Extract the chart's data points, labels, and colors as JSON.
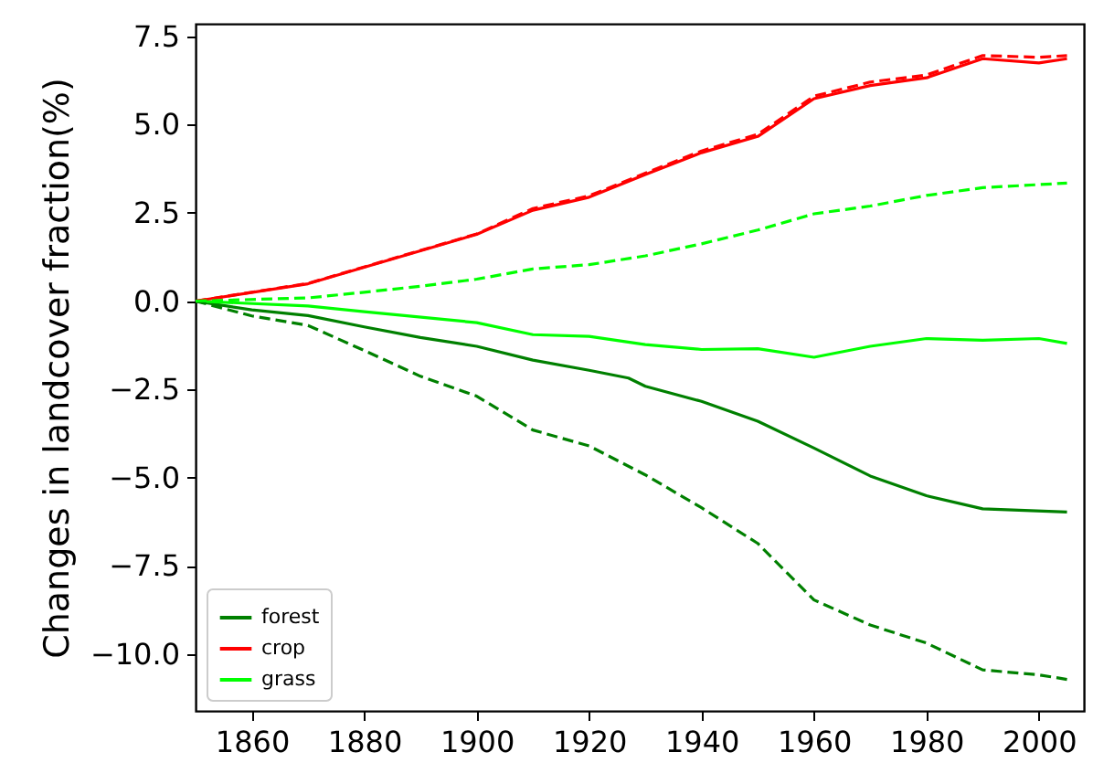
{
  "chart_data": {
    "type": "line",
    "ylabel": "Changes in landcover fraction(%)",
    "xlim": [
      1850,
      2008
    ],
    "ylim": [
      -11.6,
      7.85
    ],
    "xticks": [
      1860,
      1880,
      1900,
      1920,
      1940,
      1960,
      1980,
      2000
    ],
    "yticks": [
      {
        "value": -10,
        "label": "−10.0"
      },
      {
        "value": -7.5,
        "label": "−7.5"
      },
      {
        "value": -5,
        "label": "−5.0"
      },
      {
        "value": -2.5,
        "label": "−2.5"
      },
      {
        "value": 0,
        "label": "0.0"
      },
      {
        "value": 2.5,
        "label": "2.5"
      },
      {
        "value": 5,
        "label": "5.0"
      },
      {
        "value": 7.5,
        "label": "7.5"
      }
    ],
    "legend": "bottom left",
    "series": [
      {
        "name": "forest",
        "color": "#008000",
        "line_style": "solid",
        "x": [
          1850,
          1860,
          1870,
          1880,
          1890,
          1900,
          1910,
          1920,
          1927,
          1930,
          1940,
          1950,
          1960,
          1970,
          1980,
          1990,
          2005
        ],
        "values": [
          0,
          -0.25,
          -0.41,
          -0.73,
          -1.03,
          -1.28,
          -1.67,
          -1.96,
          -2.18,
          -2.41,
          -2.84,
          -3.4,
          -4.16,
          -4.95,
          -5.51,
          -5.88,
          -5.97
        ]
      },
      {
        "name": "crop",
        "color": "#ff0000",
        "line_style": "solid",
        "x": [
          1850,
          1870,
          1900,
          1910,
          1920,
          1930,
          1940,
          1950,
          1960,
          1970,
          1980,
          1990,
          2000,
          2005
        ],
        "values": [
          0,
          0.49,
          1.89,
          2.57,
          2.94,
          3.58,
          4.2,
          4.66,
          5.73,
          6.1,
          6.32,
          6.86,
          6.74,
          6.86
        ]
      },
      {
        "name": "grass",
        "color": "#00ff00",
        "line_style": "solid",
        "x": [
          1850,
          1870,
          1880,
          1900,
          1910,
          1920,
          1930,
          1940,
          1950,
          1960,
          1970,
          1980,
          1990,
          2000,
          2005
        ],
        "values": [
          0,
          -0.14,
          -0.3,
          -0.61,
          -0.95,
          -1.0,
          -1.23,
          -1.37,
          -1.35,
          -1.59,
          -1.28,
          -1.06,
          -1.11,
          -1.06,
          -1.2
        ]
      },
      {
        "color": "#008000",
        "line_style": "dashed",
        "x": [
          1850,
          1860,
          1870,
          1880,
          1890,
          1900,
          1910,
          1920,
          1930,
          1940,
          1950,
          1960,
          1970,
          1980,
          1990,
          2000,
          2005
        ],
        "values": [
          0,
          -0.42,
          -0.69,
          -1.4,
          -2.13,
          -2.69,
          -3.65,
          -4.1,
          -4.92,
          -5.85,
          -6.86,
          -8.46,
          -9.17,
          -9.68,
          -10.44,
          -10.58,
          -10.71
        ]
      },
      {
        "color": "#ff0000",
        "line_style": "dashed",
        "x": [
          1850,
          1870,
          1900,
          1910,
          1920,
          1930,
          1940,
          1950,
          1960,
          1970,
          1980,
          1990,
          2000,
          2005
        ],
        "values": [
          0,
          0.5,
          1.9,
          2.62,
          2.98,
          3.62,
          4.25,
          4.72,
          5.8,
          6.2,
          6.4,
          6.95,
          6.9,
          6.95
        ]
      },
      {
        "color": "#00ff00",
        "line_style": "dashed",
        "x": [
          1850,
          1870,
          1880,
          1890,
          1900,
          1910,
          1920,
          1930,
          1940,
          1950,
          1960,
          1970,
          1980,
          1990,
          2005
        ],
        "values": [
          0,
          0.09,
          0.25,
          0.42,
          0.62,
          0.91,
          1.03,
          1.28,
          1.62,
          2.01,
          2.47,
          2.69,
          2.99,
          3.21,
          3.34
        ]
      }
    ]
  }
}
